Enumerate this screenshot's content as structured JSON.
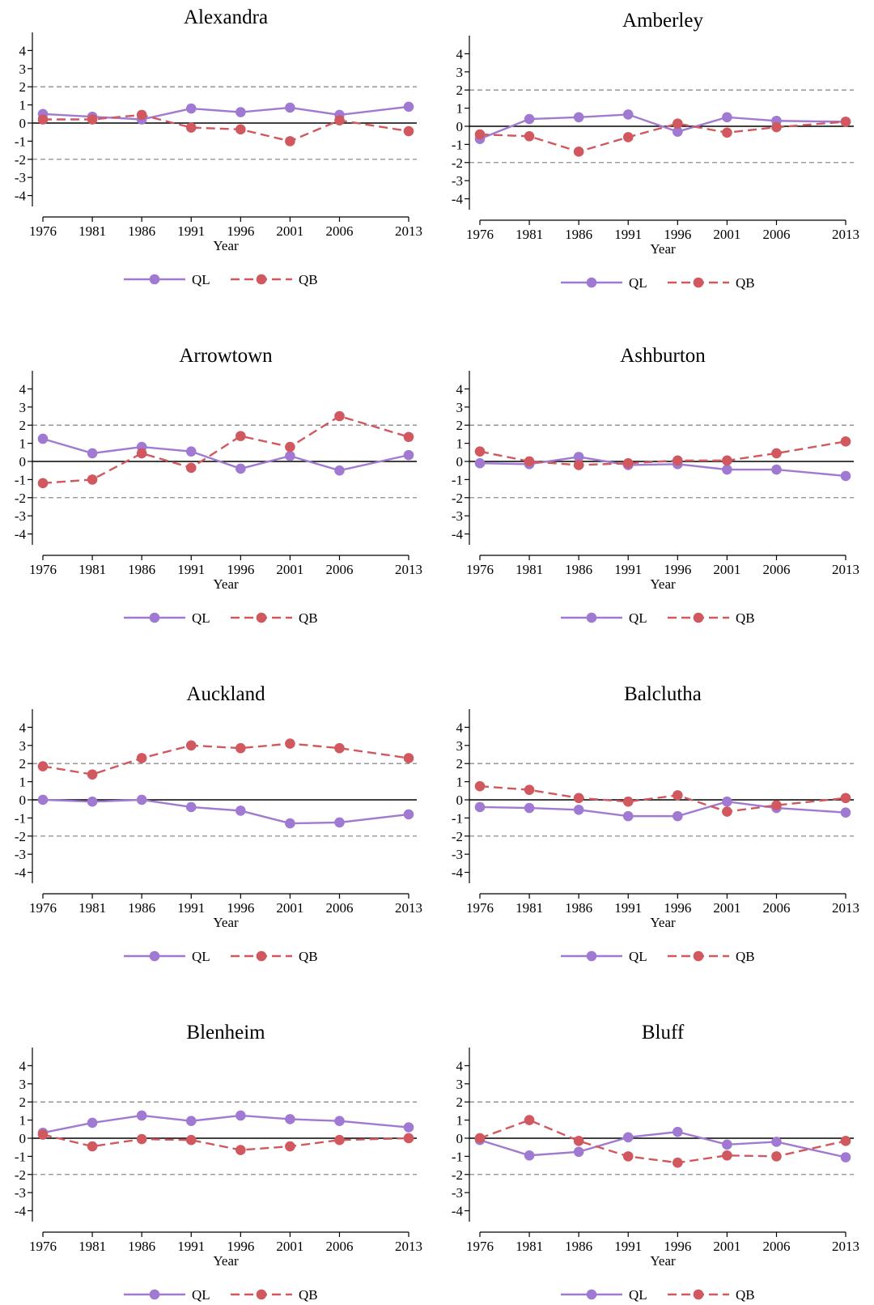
{
  "colors": {
    "QL": "#a07ad2",
    "QB": "#d0585e",
    "ref": "#8c8c8c",
    "zero": "#000000"
  },
  "chart_data": [
    {
      "type": "line",
      "title": "Alexandra",
      "xlabel": "Year",
      "ylabel": "",
      "x": [
        1976,
        1981,
        1986,
        1991,
        1996,
        2001,
        2006,
        2013
      ],
      "ylim": [
        -4.6,
        5.0
      ],
      "yticks": [
        4,
        3,
        2,
        1,
        0,
        -1,
        -2,
        -3,
        -4
      ],
      "reference_lines": [
        2,
        -2
      ],
      "legend_position": "bottom",
      "series": [
        {
          "name": "QL",
          "values": [
            0.5,
            0.35,
            0.2,
            0.8,
            0.6,
            0.85,
            0.45,
            0.9
          ]
        },
        {
          "name": "QB",
          "values": [
            0.2,
            0.2,
            0.45,
            -0.25,
            -0.35,
            -1.0,
            0.15,
            -0.45
          ]
        }
      ]
    },
    {
      "type": "line",
      "title": "Amberley",
      "xlabel": "Year",
      "ylabel": "",
      "x": [
        1976,
        1981,
        1986,
        1991,
        1996,
        2001,
        2006,
        2013
      ],
      "ylim": [
        -4.6,
        5.0
      ],
      "yticks": [
        4,
        3,
        2,
        1,
        0,
        -1,
        -2,
        -3,
        -4
      ],
      "reference_lines": [
        2,
        -2
      ],
      "legend_position": "bottom",
      "series": [
        {
          "name": "QL",
          "values": [
            -0.7,
            0.4,
            0.5,
            0.65,
            -0.3,
            0.5,
            0.3,
            0.25
          ]
        },
        {
          "name": "QB",
          "values": [
            -0.45,
            -0.55,
            -1.4,
            -0.6,
            0.15,
            -0.35,
            -0.05,
            0.25
          ]
        }
      ]
    },
    {
      "type": "line",
      "title": "Arrowtown",
      "xlabel": "Year",
      "ylabel": "",
      "x": [
        1976,
        1981,
        1986,
        1991,
        1996,
        2001,
        2006,
        2013
      ],
      "ylim": [
        -4.6,
        5.0
      ],
      "yticks": [
        4,
        3,
        2,
        1,
        0,
        -1,
        -2,
        -3,
        -4
      ],
      "reference_lines": [
        2,
        -2
      ],
      "legend_position": "bottom",
      "series": [
        {
          "name": "QL",
          "values": [
            1.25,
            0.45,
            0.8,
            0.55,
            -0.4,
            0.3,
            -0.5,
            0.35
          ]
        },
        {
          "name": "QB",
          "values": [
            -1.2,
            -1.0,
            0.45,
            -0.35,
            1.4,
            0.8,
            2.5,
            1.35
          ]
        }
      ]
    },
    {
      "type": "line",
      "title": "Ashburton",
      "xlabel": "Year",
      "ylabel": "",
      "x": [
        1976,
        1981,
        1986,
        1991,
        1996,
        2001,
        2006,
        2013
      ],
      "ylim": [
        -4.6,
        5.0
      ],
      "yticks": [
        4,
        3,
        2,
        1,
        0,
        -1,
        -2,
        -3,
        -4
      ],
      "reference_lines": [
        2,
        -2
      ],
      "legend_position": "bottom",
      "series": [
        {
          "name": "QL",
          "values": [
            -0.1,
            -0.15,
            0.25,
            -0.2,
            -0.15,
            -0.45,
            -0.45,
            -0.8
          ]
        },
        {
          "name": "QB",
          "values": [
            0.55,
            0.0,
            -0.2,
            -0.1,
            0.05,
            0.05,
            0.45,
            1.1
          ]
        }
      ]
    },
    {
      "type": "line",
      "title": "Auckland",
      "xlabel": "Year",
      "ylabel": "",
      "x": [
        1976,
        1981,
        1986,
        1991,
        1996,
        2001,
        2006,
        2013
      ],
      "ylim": [
        -4.6,
        5.0
      ],
      "yticks": [
        4,
        3,
        2,
        1,
        0,
        -1,
        -2,
        -3,
        -4
      ],
      "reference_lines": [
        2,
        -2
      ],
      "legend_position": "bottom",
      "series": [
        {
          "name": "QL",
          "values": [
            0.0,
            -0.1,
            0.0,
            -0.4,
            -0.6,
            -1.3,
            -1.25,
            -0.8
          ]
        },
        {
          "name": "QB",
          "values": [
            1.85,
            1.4,
            2.3,
            3.0,
            2.85,
            3.1,
            2.85,
            2.3
          ]
        }
      ]
    },
    {
      "type": "line",
      "title": "Balclutha",
      "xlabel": "Year",
      "ylabel": "",
      "x": [
        1976,
        1981,
        1986,
        1991,
        1996,
        2001,
        2006,
        2013
      ],
      "ylim": [
        -4.6,
        5.0
      ],
      "yticks": [
        4,
        3,
        2,
        1,
        0,
        -1,
        -2,
        -3,
        -4
      ],
      "reference_lines": [
        2,
        -2
      ],
      "legend_position": "bottom",
      "series": [
        {
          "name": "QL",
          "values": [
            -0.4,
            -0.45,
            -0.55,
            -0.9,
            -0.9,
            -0.1,
            -0.45,
            -0.7
          ]
        },
        {
          "name": "QB",
          "values": [
            0.75,
            0.55,
            0.1,
            -0.1,
            0.25,
            -0.65,
            -0.3,
            0.1
          ]
        }
      ]
    },
    {
      "type": "line",
      "title": "Blenheim",
      "xlabel": "Year",
      "ylabel": "",
      "x": [
        1976,
        1981,
        1986,
        1991,
        1996,
        2001,
        2006,
        2013
      ],
      "ylim": [
        -4.6,
        5.0
      ],
      "yticks": [
        4,
        3,
        2,
        1,
        0,
        -1,
        -2,
        -3,
        -4
      ],
      "reference_lines": [
        2,
        -2
      ],
      "legend_position": "bottom",
      "series": [
        {
          "name": "QL",
          "values": [
            0.3,
            0.85,
            1.25,
            0.95,
            1.25,
            1.05,
            0.95,
            0.6
          ]
        },
        {
          "name": "QB",
          "values": [
            0.2,
            -0.45,
            -0.05,
            -0.1,
            -0.65,
            -0.45,
            -0.1,
            0.0
          ]
        }
      ]
    },
    {
      "type": "line",
      "title": "Bluff",
      "xlabel": "Year",
      "ylabel": "",
      "x": [
        1976,
        1981,
        1986,
        1991,
        1996,
        2001,
        2006,
        2013
      ],
      "ylim": [
        -4.6,
        5.0
      ],
      "yticks": [
        4,
        3,
        2,
        1,
        0,
        -1,
        -2,
        -3,
        -4
      ],
      "reference_lines": [
        2,
        -2
      ],
      "legend_position": "bottom",
      "series": [
        {
          "name": "QL",
          "values": [
            -0.1,
            -0.95,
            -0.75,
            0.05,
            0.35,
            -0.35,
            -0.2,
            -1.05
          ]
        },
        {
          "name": "QB",
          "values": [
            0.0,
            1.0,
            -0.15,
            -1.0,
            -1.35,
            -0.95,
            -1.0,
            -0.15
          ]
        }
      ]
    }
  ]
}
